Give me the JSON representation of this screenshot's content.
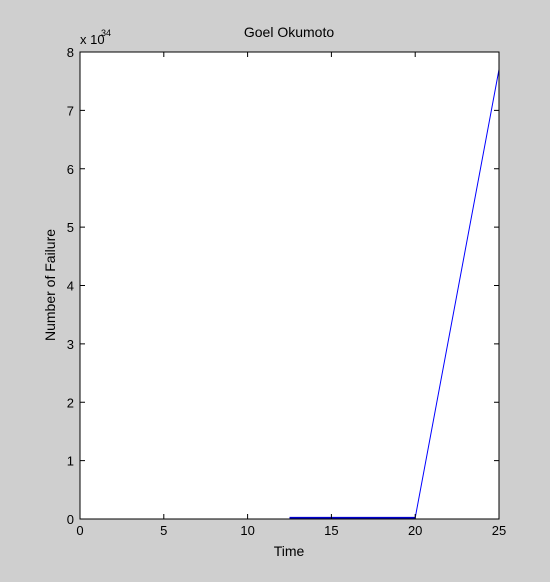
{
  "chart_data": {
    "type": "line",
    "title": "Goel Okumoto",
    "xlabel": "Time",
    "ylabel": "Number of Failure",
    "y_multiplier_base": "x 10",
    "y_multiplier_exponent": "34",
    "xlim": [
      0,
      25
    ],
    "ylim": [
      0,
      8
    ],
    "x_ticks": [
      0,
      5,
      10,
      15,
      20,
      25
    ],
    "y_ticks": [
      0,
      1,
      2,
      3,
      4,
      5,
      6,
      7,
      8
    ],
    "grid": false,
    "box": true,
    "series": [
      {
        "color": "#0000ff",
        "x": [
          0,
          12.5,
          20,
          25
        ],
        "y": [
          0,
          0,
          0.02,
          7.7
        ]
      },
      {
        "color": "#0000cc",
        "x": [
          12.5,
          20
        ],
        "y": [
          0.02,
          0.02
        ]
      }
    ]
  }
}
